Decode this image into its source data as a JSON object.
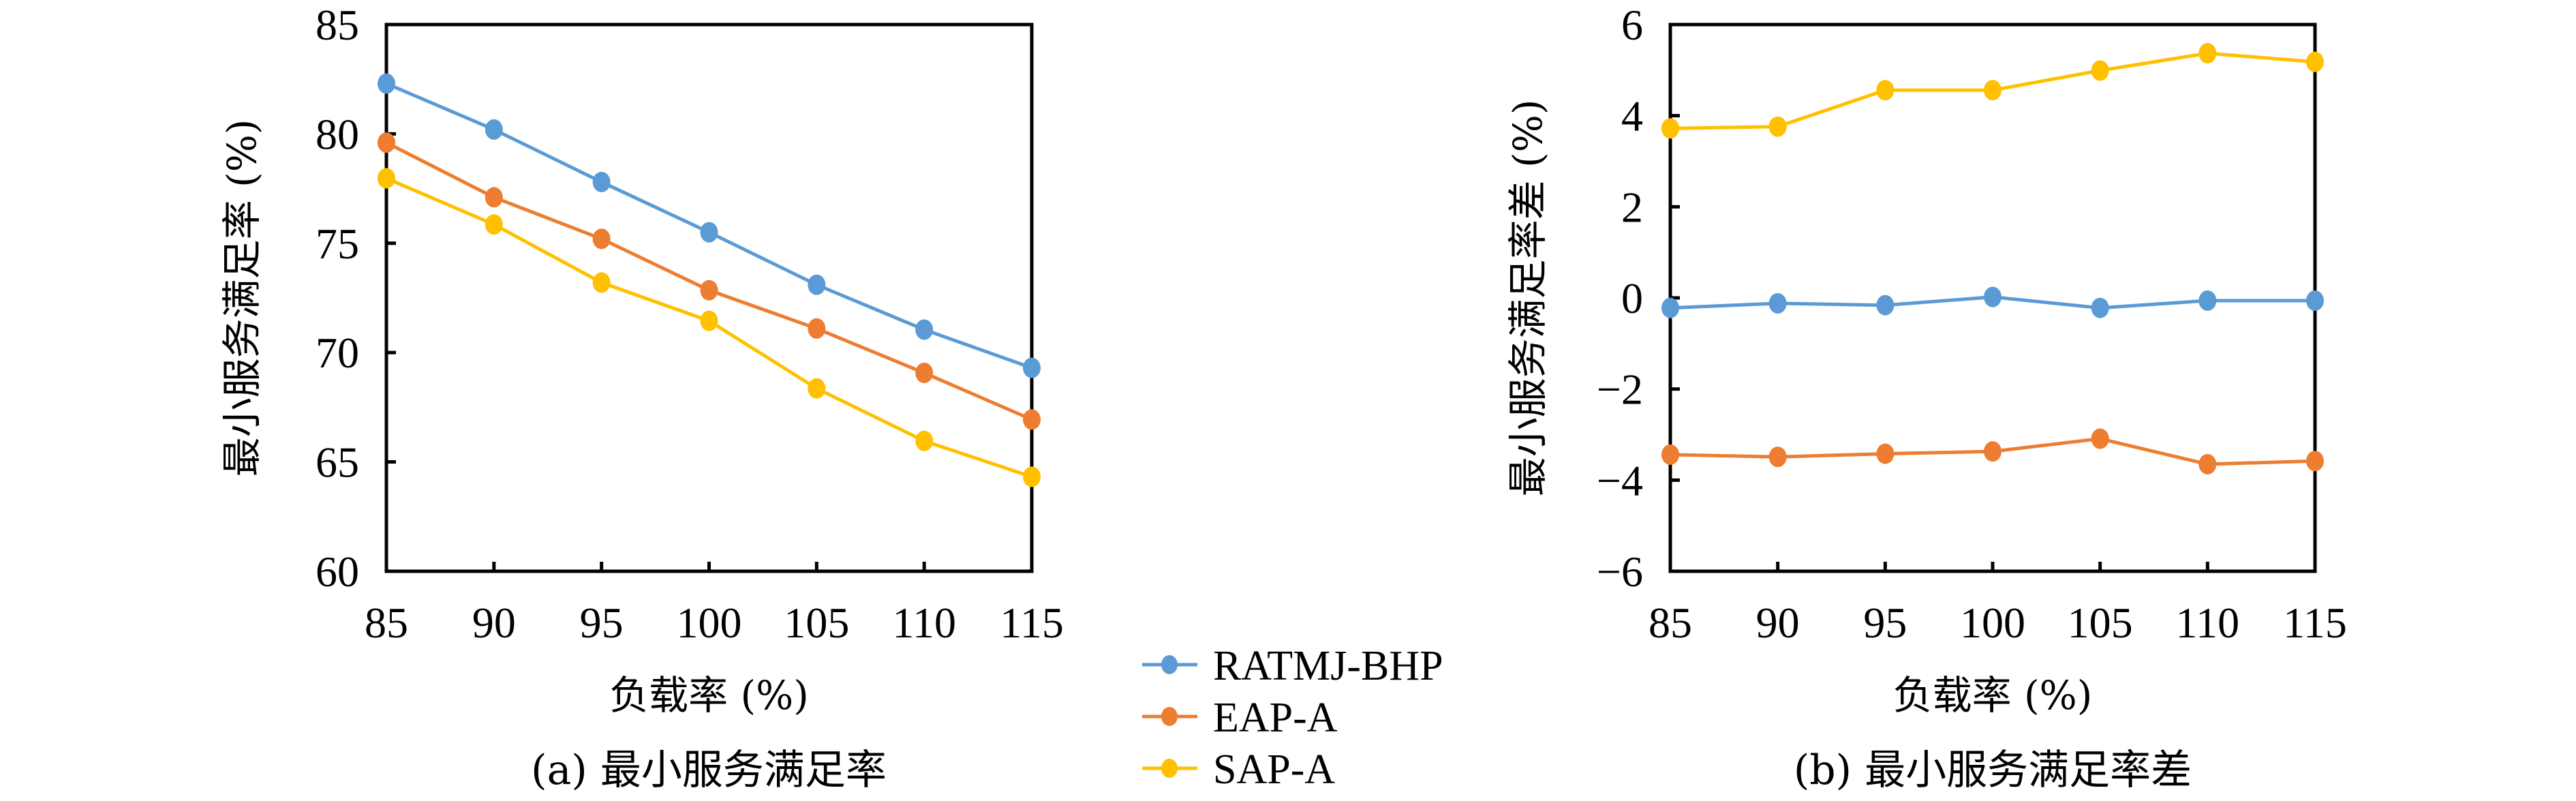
{
  "chart_data": [
    {
      "type": "line",
      "panel": "a",
      "title": "",
      "caption": "(a) 最小服务满足率",
      "xlabel": "负载率 (%)",
      "ylabel": "最小服务满足率 (%)",
      "x": [
        85,
        90,
        95,
        100,
        105,
        110,
        115
      ],
      "xticks": [
        "85",
        "90",
        "95",
        "100",
        "105",
        "110",
        "115"
      ],
      "yticks": [
        "60",
        "65",
        "70",
        "75",
        "80",
        "85"
      ],
      "ytick_values": [
        60,
        65,
        70,
        75,
        80,
        85
      ],
      "xlim": [
        85,
        115
      ],
      "ylim": [
        60,
        85
      ],
      "grid": false,
      "series": [
        {
          "name": "RATMJ-BHP",
          "color": "#5B9BD5",
          "values": [
            82.3,
            80.2,
            77.8,
            75.5,
            73.1,
            71.05,
            69.3
          ]
        },
        {
          "name": "EAP-A",
          "color": "#ED7D31",
          "values": [
            79.6,
            77.1,
            75.2,
            72.85,
            71.1,
            69.07,
            66.94
          ]
        },
        {
          "name": "SAP-A",
          "color": "#FFC000",
          "values": [
            77.97,
            75.86,
            73.2,
            71.45,
            68.36,
            65.96,
            64.32
          ]
        }
      ]
    },
    {
      "type": "line",
      "panel": "b",
      "title": "",
      "caption": "(b) 最小服务满足率差",
      "xlabel": "负载率 (%)",
      "ylabel": "最小服务满足率差 (%)",
      "x": [
        85,
        90,
        95,
        100,
        105,
        110,
        115
      ],
      "xticks": [
        "85",
        "90",
        "95",
        "100",
        "105",
        "110",
        "115"
      ],
      "yticks": [
        "−6",
        "−4",
        "−2",
        "0",
        "2",
        "4",
        "6"
      ],
      "ytick_values": [
        -6,
        -4,
        -2,
        0,
        2,
        4,
        6
      ],
      "xlim": [
        85,
        115
      ],
      "ylim": [
        -6,
        6
      ],
      "grid": false,
      "series": [
        {
          "name": "RATMJ-BHP",
          "color": "#5B9BD5",
          "values": [
            -0.22,
            -0.12,
            -0.16,
            0.02,
            -0.22,
            -0.06,
            -0.06
          ]
        },
        {
          "name": "EAP-A",
          "color": "#ED7D31",
          "values": [
            -3.44,
            -3.49,
            -3.42,
            -3.37,
            -3.09,
            -3.65,
            -3.58
          ]
        },
        {
          "name": "SAP-A",
          "color": "#FFC000",
          "values": [
            3.72,
            3.76,
            4.56,
            4.56,
            4.99,
            5.37,
            5.18
          ]
        }
      ]
    }
  ],
  "legend": {
    "placement": "bottom-center",
    "items": [
      {
        "label": "RATMJ-BHP",
        "color": "#5B9BD5"
      },
      {
        "label": "EAP-A",
        "color": "#ED7D31"
      },
      {
        "label": "SAP-A",
        "color": "#FFC000"
      }
    ]
  }
}
